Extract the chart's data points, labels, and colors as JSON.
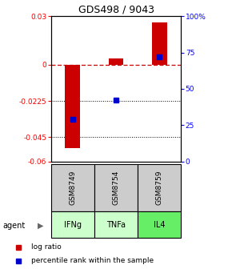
{
  "title": "GDS498 / 9043",
  "samples": [
    "GSM8749",
    "GSM8754",
    "GSM8759"
  ],
  "agents": [
    "IFNg",
    "TNFa",
    "IL4"
  ],
  "log_ratios": [
    -0.052,
    0.004,
    0.026
  ],
  "percentile_ranks": [
    29,
    42,
    72
  ],
  "ylim_left": [
    -0.06,
    0.03
  ],
  "ylim_right": [
    0,
    100
  ],
  "yticks_left": [
    0.03,
    0,
    -0.0225,
    -0.045,
    -0.06
  ],
  "yticks_right": [
    100,
    75,
    50,
    25,
    0
  ],
  "ytick_labels_left": [
    "0.03",
    "0",
    "-0.0225",
    "-0.045",
    "-0.06"
  ],
  "ytick_labels_right": [
    "100%",
    "75",
    "50",
    "25",
    "0"
  ],
  "bar_color": "#cc0000",
  "dot_color": "#0000cc",
  "sample_box_color": "#cccccc",
  "agent_colors": [
    "#ccffcc",
    "#ccffcc",
    "#66ee66"
  ],
  "zero_line_color": "#cc0000",
  "bar_width": 0.35
}
